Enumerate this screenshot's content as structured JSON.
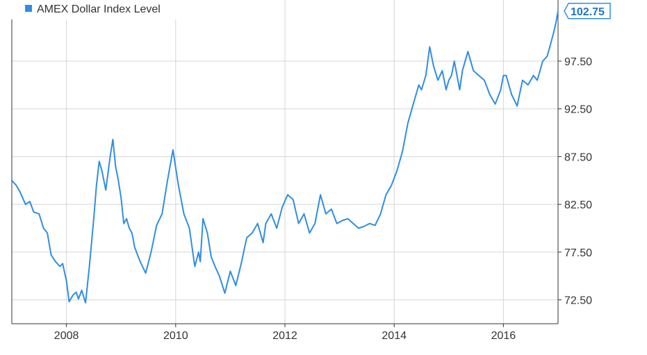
{
  "colors": {
    "series": "#2f8de4",
    "grid": "#d6d6d6",
    "axis": "#333333",
    "text": "#333333",
    "last_value_border": "#2f8de4",
    "last_value_text": "#1e74c9"
  },
  "legend": {
    "label": "AMEX Dollar Index Level",
    "icon": "square-legend-icon"
  },
  "last_value_label": "102.75",
  "chart_data": {
    "type": "line",
    "title": "",
    "xlabel": "",
    "ylabel": "",
    "legend_position": "top-left",
    "grid": true,
    "x_ticks": [
      {
        "value": 2008,
        "label": "2008"
      },
      {
        "value": 2010,
        "label": "2010"
      },
      {
        "value": 2012,
        "label": "2012"
      },
      {
        "value": 2014,
        "label": "2014"
      },
      {
        "value": 2016,
        "label": "2016"
      }
    ],
    "y_ticks": [
      {
        "value": 72.5,
        "label": "72.50"
      },
      {
        "value": 77.5,
        "label": "77.50"
      },
      {
        "value": 82.5,
        "label": "82.50"
      },
      {
        "value": 87.5,
        "label": "87.50"
      },
      {
        "value": 92.5,
        "label": "92.50"
      },
      {
        "value": 97.5,
        "label": "97.50"
      }
    ],
    "xlim": [
      2007.0,
      2017.0
    ],
    "ylim": [
      70.0,
      103.9
    ],
    "series": [
      {
        "name": "AMEX Dollar Index Level",
        "x": [
          2007.0,
          2007.08,
          2007.15,
          2007.25,
          2007.33,
          2007.4,
          2007.5,
          2007.58,
          2007.65,
          2007.72,
          2007.8,
          2007.88,
          2007.93,
          2008.0,
          2008.05,
          2008.12,
          2008.18,
          2008.22,
          2008.28,
          2008.35,
          2008.42,
          2008.5,
          2008.55,
          2008.6,
          2008.65,
          2008.72,
          2008.8,
          2008.85,
          2008.9,
          2008.95,
          2009.0,
          2009.05,
          2009.1,
          2009.15,
          2009.2,
          2009.25,
          2009.35,
          2009.45,
          2009.55,
          2009.65,
          2009.75,
          2009.85,
          2009.95,
          2010.05,
          2010.15,
          2010.25,
          2010.35,
          2010.42,
          2010.45,
          2010.5,
          2010.58,
          2010.65,
          2010.72,
          2010.8,
          2010.9,
          2011.0,
          2011.1,
          2011.2,
          2011.3,
          2011.4,
          2011.5,
          2011.6,
          2011.65,
          2011.75,
          2011.85,
          2011.95,
          2012.05,
          2012.15,
          2012.25,
          2012.35,
          2012.45,
          2012.55,
          2012.65,
          2012.75,
          2012.85,
          2012.95,
          2013.05,
          2013.15,
          2013.25,
          2013.35,
          2013.45,
          2013.55,
          2013.65,
          2013.75,
          2013.85,
          2013.95,
          2014.05,
          2014.15,
          2014.25,
          2014.35,
          2014.45,
          2014.5,
          2014.58,
          2014.65,
          2014.72,
          2014.8,
          2014.88,
          2014.95,
          2015.0,
          2015.05,
          2015.1,
          2015.15,
          2015.2,
          2015.25,
          2015.35,
          2015.45,
          2015.55,
          2015.65,
          2015.75,
          2015.85,
          2015.95,
          2016.0,
          2016.05,
          2016.15,
          2016.25,
          2016.35,
          2016.45,
          2016.55,
          2016.62,
          2016.72,
          2016.8,
          2016.85,
          2016.92,
          2016.96,
          2017.0
        ],
        "y": [
          85.0,
          84.5,
          83.8,
          82.5,
          82.8,
          81.7,
          81.5,
          80.0,
          79.5,
          77.2,
          76.5,
          76.0,
          76.3,
          74.5,
          72.3,
          73.0,
          73.3,
          72.6,
          73.5,
          72.2,
          76.0,
          81.0,
          84.5,
          87.0,
          86.0,
          84.0,
          87.5,
          89.3,
          86.5,
          85.0,
          83.2,
          80.5,
          81.0,
          80.0,
          79.5,
          78.0,
          76.5,
          75.3,
          77.5,
          80.3,
          81.5,
          85.0,
          88.2,
          84.5,
          81.5,
          80.0,
          76.0,
          77.5,
          76.5,
          81.0,
          79.5,
          77.0,
          76.0,
          75.0,
          73.2,
          75.5,
          74.0,
          76.3,
          79.0,
          79.5,
          80.5,
          78.5,
          80.5,
          81.5,
          80.0,
          82.2,
          83.5,
          83.0,
          80.5,
          81.5,
          79.5,
          80.5,
          83.5,
          81.5,
          82.0,
          80.5,
          80.8,
          81.0,
          80.5,
          80.0,
          80.2,
          80.5,
          80.3,
          81.5,
          83.5,
          84.5,
          86.0,
          88.0,
          91.0,
          93.0,
          95.0,
          94.5,
          96.0,
          99.0,
          97.0,
          95.5,
          96.5,
          94.5,
          95.5,
          96.0,
          97.5,
          96.0,
          94.5,
          96.5,
          98.5,
          96.5,
          96.0,
          95.5,
          94.0,
          93.0,
          94.5,
          96.0,
          96.0,
          94.0,
          92.8,
          95.5,
          95.0,
          96.0,
          95.5,
          97.5,
          98.0,
          99.0,
          100.5,
          101.5,
          102.75
        ]
      }
    ]
  }
}
